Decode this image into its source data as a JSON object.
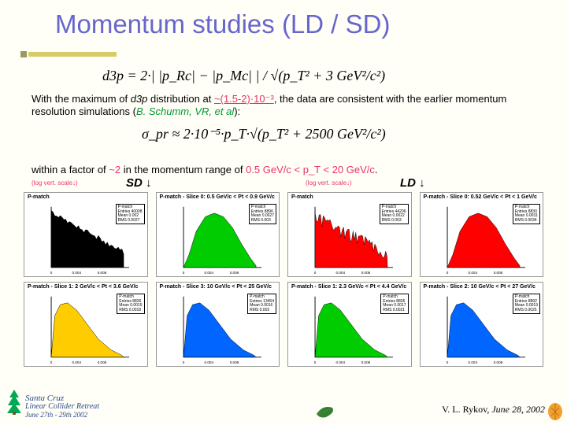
{
  "title": "Momentum studies (LD / SD)",
  "eq1": "d3p = 2·| |p_Rc| − |p_Mc| | / √(p_T² + 3 GeV²/c²)",
  "body1_a": "With the maximum of ",
  "body1_d3p": "d3p",
  "body1_b": " distribution at ",
  "body1_pink1": "~(1.5-2)·10⁻³",
  "body1_c": ", the data are consistent with the earlier momentum resolution simulations (",
  "body1_cite": "B. Schumm, VR, et al",
  "body1_d": "):",
  "eq2": "σ_pr ≈ 2·10⁻⁵·p_T·√(p_T² + 2500 GeV²/c²)",
  "body2_a": "within a factor of ",
  "body2_pink1": "~2",
  "body2_b": " in the momentum range of ",
  "body2_pink2": "0.5 GeV/c < p_T < 20 GeV/c",
  "body2_c": ".",
  "log_label": "(log vert. scale↓)",
  "sd_label": "SD ↓",
  "ld_label": "LD ↓",
  "panels": [
    {
      "title": "P-match",
      "color": "#000000",
      "shape": "fill_noise",
      "stats": "P-match\\nEntries 40008\\nMean 0.002\\nRMS 0.0027"
    },
    {
      "title": "P-match - Slice 0: 0.5 GeV/c < Pt < 0.9 GeV/c",
      "color": "#00cc00",
      "shape": "hump",
      "stats": "P-match\\nEntries 8896\\nMean 0.0027\\nRMS 0.003"
    },
    {
      "title": "P-match",
      "color": "#ff0000",
      "shape": "red_noise",
      "stats": "P-match\\nEntries 44206\\nMean 0.0022\\nRMS 0.003"
    },
    {
      "title": "P-match - Slice 0: 0.52 GeV/c < Pt < 1 GeV/c",
      "color": "#ff0000",
      "shape": "hump",
      "stats": "P-match\\nEntries 8830\\nMean 0.0031\\nRMS 0.0034"
    },
    {
      "title": "P-match - Slice 1: 2 GeV/c < Pt < 3.6 GeV/c",
      "color": "#ffcc00",
      "shape": "skew_left",
      "stats": "P-match\\nEntries 8836\\nMean 0.0015\\nRMS 0.0018"
    },
    {
      "title": "P-match - Slice 3: 10 GeV/c < Pt < 25 GeV/c",
      "color": "#0066ff",
      "shape": "skew_left",
      "stats": "P-match\\nEntries 13454\\nMean 0.0016\\nRMS 0.002"
    },
    {
      "title": "P-match - Slice 1: 2.3 GeV/c < Pt < 4.4 GeV/c",
      "color": "#00cc00",
      "shape": "skew_left",
      "stats": "P-match\\nEntries 8836\\nMean 0.0017\\nRMS 0.0021"
    },
    {
      "title": "P-match - Slice 2: 10 GeV/c < Pt < 27 GeV/c",
      "color": "#0066ff",
      "shape": "skew_left",
      "stats": "P-match\\nEntries 8892\\nMean 0.0019\\nRMS 0.0025"
    }
  ],
  "footer_left_1": "Santa Cruz",
  "footer_left_2": "Linear Collider Retreat",
  "footer_left_3": "June 27th - 29th 2002",
  "attr_name": "V. L. Rykov, ",
  "attr_date": "June 28, 2002"
}
